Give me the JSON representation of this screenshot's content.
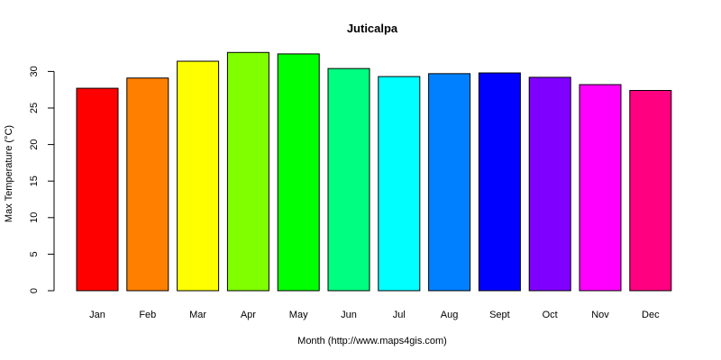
{
  "chart_data": {
    "type": "bar",
    "title": "Juticalpa",
    "xlabel": "Month (http://www.maps4gis.com)",
    "ylabel": "Max Temperature (°C)",
    "categories": [
      "Jan",
      "Feb",
      "Mar",
      "Apr",
      "May",
      "Jun",
      "Jul",
      "Aug",
      "Sept",
      "Oct",
      "Nov",
      "Dec"
    ],
    "values": [
      27.7,
      29.1,
      31.4,
      32.6,
      32.4,
      30.4,
      29.3,
      29.7,
      29.8,
      29.2,
      28.2,
      27.4
    ],
    "colors": [
      "#FF0000",
      "#FF8000",
      "#FFFF00",
      "#80FF00",
      "#00FF00",
      "#00FF80",
      "#00FFFF",
      "#0080FF",
      "#0000FF",
      "#8000FF",
      "#FF00FF",
      "#FF0080"
    ],
    "yticks": [
      0,
      5,
      10,
      15,
      20,
      25,
      30
    ],
    "ylim": [
      0,
      32.6
    ],
    "grid": false,
    "legend": "none"
  }
}
